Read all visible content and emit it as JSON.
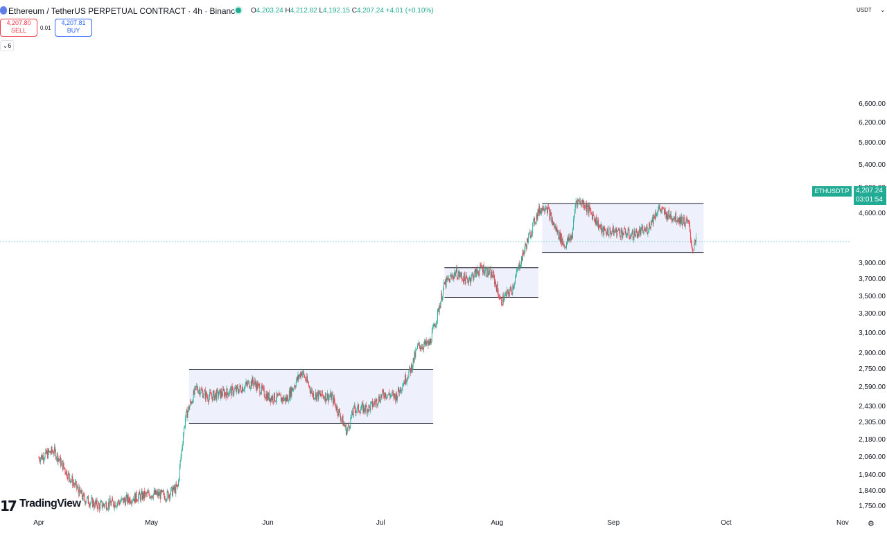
{
  "header": {
    "title": "Ethereum / TetherUS PERPETUAL CONTRACT · 4h · Binance",
    "ohlc": {
      "o_label": "O",
      "o": "4,203.24",
      "h_label": "H",
      "h": "4,212.82",
      "l_label": "L",
      "l": "4,192.15",
      "c_label": "C",
      "c": "4,207.24",
      "change": "+4.01 (+0.10%)"
    },
    "sell_price": "4,207.80",
    "sell_label": "SELL",
    "spread": "0.01",
    "buy_price": "4,207.81",
    "buy_label": "BUY",
    "indicators_label": "6",
    "currency": "USDT"
  },
  "price_label": {
    "symbol": "ETHUSDT.P",
    "price": "4,207.24",
    "countdown": "03:01:54"
  },
  "logo_text": "TradingView",
  "colors": {
    "up": "#22ab94",
    "down": "#f23645",
    "range_fill": "#eef0fc",
    "range_line": "#131722"
  },
  "chart_data": {
    "type": "candlestick",
    "title": "",
    "xlabel": "",
    "ylabel": "",
    "y_ticks": [
      "6,600.00",
      "6,200.00",
      "5,800.00",
      "5,400.00",
      "5,000.00",
      "4,600.00",
      "3,900.00",
      "3,700.00",
      "3,500.00",
      "3,300.00",
      "3,100.00",
      "2,900.00",
      "2,750.00",
      "2,590.00",
      "2,430.00",
      "2,305.00",
      "2,180.00",
      "2,060.00",
      "1,940.00",
      "1,840.00",
      "1,750.00"
    ],
    "x_ticks": [
      "Apr",
      "May",
      "Jun",
      "Jul",
      "Aug",
      "Sep",
      "Oct",
      "Nov"
    ],
    "ylim": [
      1720,
      6800
    ],
    "y_scale": "log",
    "last_price": 4207.24,
    "price_path": [
      [
        "2025-04-01",
        2060
      ],
      [
        "2025-04-05",
        2110
      ],
      [
        "2025-04-09",
        1940
      ],
      [
        "2025-04-13",
        1800
      ],
      [
        "2025-04-17",
        1760
      ],
      [
        "2025-04-22",
        1780
      ],
      [
        "2025-04-26",
        1805
      ],
      [
        "2025-05-01",
        1830
      ],
      [
        "2025-05-05",
        1820
      ],
      [
        "2025-05-08",
        1870
      ],
      [
        "2025-05-10",
        2350
      ],
      [
        "2025-05-13",
        2600
      ],
      [
        "2025-05-16",
        2520
      ],
      [
        "2025-05-20",
        2550
      ],
      [
        "2025-05-24",
        2580
      ],
      [
        "2025-05-28",
        2650
      ],
      [
        "2025-06-01",
        2520
      ],
      [
        "2025-06-06",
        2500
      ],
      [
        "2025-06-10",
        2740
      ],
      [
        "2025-06-13",
        2540
      ],
      [
        "2025-06-18",
        2520
      ],
      [
        "2025-06-22",
        2250
      ],
      [
        "2025-06-24",
        2420
      ],
      [
        "2025-06-28",
        2430
      ],
      [
        "2025-07-02",
        2550
      ],
      [
        "2025-07-05",
        2520
      ],
      [
        "2025-07-09",
        2760
      ],
      [
        "2025-07-11",
        2980
      ],
      [
        "2025-07-14",
        3000
      ],
      [
        "2025-07-16",
        3280
      ],
      [
        "2025-07-18",
        3650
      ],
      [
        "2025-07-21",
        3800
      ],
      [
        "2025-07-24",
        3700
      ],
      [
        "2025-07-28",
        3860
      ],
      [
        "2025-07-31",
        3750
      ],
      [
        "2025-08-02",
        3450
      ],
      [
        "2025-08-05",
        3600
      ],
      [
        "2025-08-07",
        3900
      ],
      [
        "2025-08-09",
        4200
      ],
      [
        "2025-08-12",
        4650
      ],
      [
        "2025-08-14",
        4750
      ],
      [
        "2025-08-16",
        4450
      ],
      [
        "2025-08-19",
        4150
      ],
      [
        "2025-08-21",
        4300
      ],
      [
        "2025-08-22",
        4820
      ],
      [
        "2025-08-24",
        4780
      ],
      [
        "2025-08-27",
        4550
      ],
      [
        "2025-08-29",
        4350
      ],
      [
        "2025-09-02",
        4350
      ],
      [
        "2025-09-06",
        4300
      ],
      [
        "2025-09-10",
        4380
      ],
      [
        "2025-09-13",
        4700
      ],
      [
        "2025-09-15",
        4600
      ],
      [
        "2025-09-18",
        4550
      ],
      [
        "2025-09-21",
        4460
      ],
      [
        "2025-09-22",
        4100
      ],
      [
        "2025-09-23",
        4207
      ]
    ],
    "ranges": [
      {
        "x_start": "2025-05-11",
        "x_end": "2025-07-15",
        "top": 2760,
        "bottom": 2310
      },
      {
        "x_start": "2025-07-18",
        "x_end": "2025-08-12",
        "top": 3860,
        "bottom": 3500
      },
      {
        "x_start": "2025-08-13",
        "x_end": "2025-09-25",
        "top": 4770,
        "bottom": 4060
      }
    ]
  }
}
